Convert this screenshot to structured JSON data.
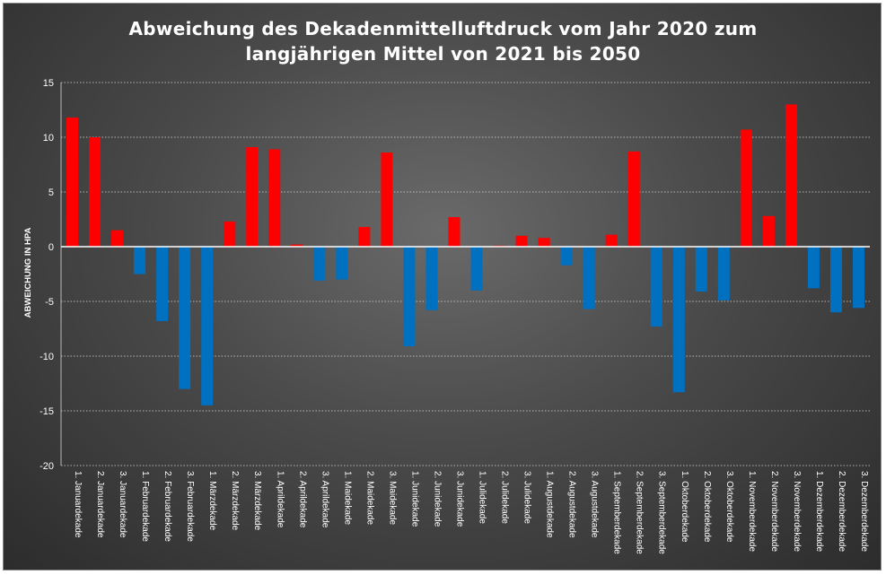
{
  "chart_data": {
    "type": "bar",
    "title": "Abweichung des Dekadenmittelluftdruck vom Jahr 2020 zum langjährigen Mittel von 2021 bis 2050",
    "title_lines": [
      "Abweichung des Dekadenmittelluftdruck vom Jahr 2020 zum",
      "langjährigen Mittel von 2021 bis 2050"
    ],
    "xlabel": "",
    "ylabel": "ABWEICHUNG IN HPA",
    "ylim": [
      -20,
      15
    ],
    "yticks": [
      15,
      10,
      5,
      0,
      -5,
      -10,
      -15,
      -20
    ],
    "grid": "horizontal dotted",
    "legend": "none",
    "positive_color": "#ff0000",
    "negative_color": "#0070c0",
    "categories": [
      "1. Januardekade",
      "2. Januardekade",
      "3. Januardekade",
      "1. Februardekade",
      "2. Februardekade",
      "3. Februardekade",
      "1. Märzdekade",
      "2. Märzdekade",
      "3. Märzdekade",
      "1. Aprildekade",
      "2. Aprildekade",
      "3. Aprildekade",
      "1. Maidekade",
      "2. Maidekade",
      "3. Maidekade",
      "1. Junidekade",
      "2. Junidekade",
      "3. Junidekade",
      "1. Julidekade",
      "2. Julidekade",
      "3. Julidekade",
      "1. Augustdekade",
      "2. Augustdekade",
      "3. Augustdekade",
      "1. Septemberdekade",
      "2. Septemberdekade",
      "3. Septemberdekade",
      "1. Oktoberdekade",
      "2. Oktoberdekade",
      "3. Oktoberdekade",
      "1. Novemberdekade",
      "2. Novemberdekade",
      "3. Novemberdekade",
      "1. Dezemberdekade",
      "2. Dezemberdekade",
      "3. Dezemberdekade"
    ],
    "values": [
      11.8,
      10.0,
      1.5,
      -2.5,
      -6.8,
      -13.0,
      -14.5,
      2.3,
      9.1,
      8.9,
      0.2,
      -3.1,
      -3.0,
      1.8,
      8.6,
      -9.1,
      -5.8,
      2.7,
      -4.0,
      0.1,
      1.0,
      0.8,
      -1.7,
      -5.7,
      1.1,
      8.7,
      -7.3,
      -13.3,
      -4.1,
      -4.9,
      10.7,
      2.8,
      13.0,
      -3.8,
      -6.0,
      -5.6
    ]
  }
}
